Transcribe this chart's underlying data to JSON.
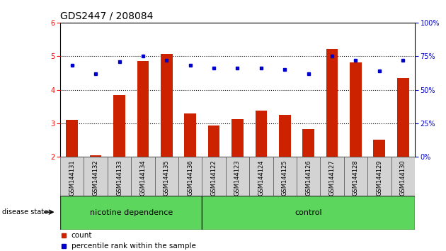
{
  "title": "GDS2447 / 208084",
  "samples": [
    "GSM144131",
    "GSM144132",
    "GSM144133",
    "GSM144134",
    "GSM144135",
    "GSM144136",
    "GSM144122",
    "GSM144123",
    "GSM144124",
    "GSM144125",
    "GSM144126",
    "GSM144127",
    "GSM144128",
    "GSM144129",
    "GSM144130"
  ],
  "bar_values": [
    3.1,
    2.05,
    3.85,
    4.85,
    5.07,
    3.3,
    2.93,
    3.12,
    3.38,
    3.25,
    2.82,
    5.22,
    4.82,
    2.52,
    4.35
  ],
  "dot_values": [
    68,
    62,
    71,
    75,
    72,
    68,
    66,
    66,
    66,
    65,
    62,
    75,
    72,
    64,
    72
  ],
  "ylim_left": [
    2,
    6
  ],
  "ylim_right": [
    0,
    100
  ],
  "bar_color": "#cc2200",
  "dot_color": "#0000cc",
  "nicotine_count": 6,
  "total_count": 15,
  "title_fontsize": 10,
  "tick_fontsize": 7,
  "sample_fontsize": 6,
  "group_fontsize": 8
}
